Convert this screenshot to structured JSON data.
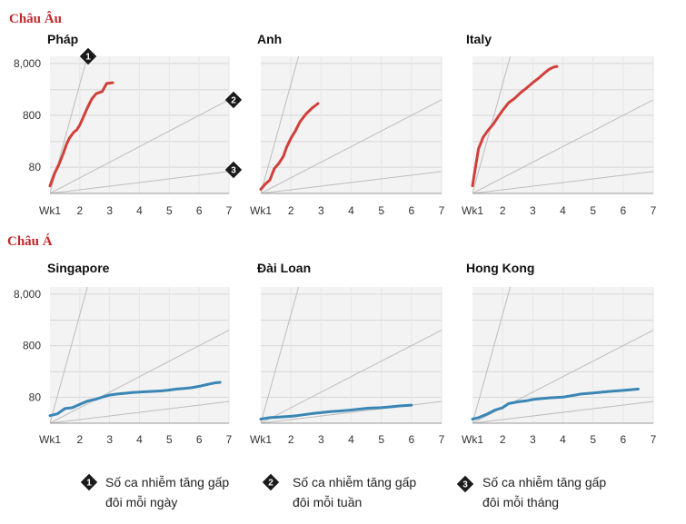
{
  "sections": [
    {
      "title": "Châu Âu"
    },
    {
      "title": "Châu Á"
    }
  ],
  "reference_markers": [
    "1",
    "2",
    "3"
  ],
  "legend": [
    {
      "marker": "1",
      "text_line1": "Số ca nhiễm tăng gấp",
      "text_line2": "đôi mỗi ngày"
    },
    {
      "marker": "2",
      "text_line1": "Số ca nhiễm tăng gấp",
      "text_line2": "đôi mỗi tuần"
    },
    {
      "marker": "3",
      "text_line1": "Số ca nhiễm tăng gấp",
      "text_line2": "đôi mỗi tháng"
    }
  ],
  "colors": {
    "europe_line": "#d0403a",
    "asia_line": "#3a86b5",
    "plot_bg": "#f3f3f3",
    "grid": "#d6d6d6",
    "reference": "#bdbdbd",
    "marker_bg": "#1a1a1a",
    "section_title": "#c2272d"
  },
  "chart_data": [
    {
      "type": "line",
      "title": "Pháp",
      "section": "Châu Âu",
      "color": "#d0403a",
      "x_ticks": [
        "Wk1",
        "2",
        "3",
        "4",
        "5",
        "6",
        "7"
      ],
      "y_ticks": [
        "8,000",
        "800",
        "80"
      ],
      "y_scale": "log",
      "xlim": [
        1,
        7
      ],
      "ylim": [
        25,
        11000
      ],
      "reference_lines": [
        {
          "marker": "1",
          "doubling_days": 1
        },
        {
          "marker": "2",
          "doubling_days": 7
        },
        {
          "marker": "3",
          "doubling_days": 30
        }
      ],
      "series": [
        {
          "x": [
            1.0,
            1.15,
            1.3,
            1.45,
            1.55,
            1.65,
            1.8,
            1.9,
            2.0,
            2.1,
            2.25,
            2.4,
            2.55,
            2.75,
            2.9,
            3.1
          ],
          "y": [
            35,
            60,
            90,
            150,
            220,
            290,
            380,
            420,
            520,
            700,
            1100,
            1650,
            2100,
            2300,
            3300,
            3400
          ]
        }
      ]
    },
    {
      "type": "line",
      "title": "Anh",
      "section": "Châu Âu",
      "color": "#d0403a",
      "x_ticks": [
        "Wk1",
        "2",
        "3",
        "4",
        "5",
        "6",
        "7"
      ],
      "y_ticks": [],
      "y_scale": "log",
      "xlim": [
        1,
        7
      ],
      "ylim": [
        25,
        11000
      ],
      "reference_lines": [
        {
          "doubling_days": 1
        },
        {
          "doubling_days": 7
        },
        {
          "doubling_days": 30
        }
      ],
      "series": [
        {
          "x": [
            1.0,
            1.15,
            1.3,
            1.45,
            1.6,
            1.75,
            1.85,
            2.0,
            2.15,
            2.3,
            2.5,
            2.7,
            2.9
          ],
          "y": [
            30,
            38,
            45,
            75,
            95,
            130,
            190,
            290,
            400,
            600,
            850,
            1100,
            1350
          ]
        }
      ]
    },
    {
      "type": "line",
      "title": "Italy",
      "section": "Châu Âu",
      "color": "#d0403a",
      "x_ticks": [
        "Wk1",
        "2",
        "3",
        "4",
        "5",
        "6",
        "7"
      ],
      "y_ticks": [],
      "y_scale": "log",
      "xlim": [
        1,
        7
      ],
      "ylim": [
        25,
        11000
      ],
      "reference_lines": [
        {
          "doubling_days": 1
        },
        {
          "doubling_days": 7
        },
        {
          "doubling_days": 30
        }
      ],
      "series": [
        {
          "x": [
            1.0,
            1.1,
            1.2,
            1.35,
            1.5,
            1.7,
            1.85,
            2.0,
            2.2,
            2.4,
            2.6,
            2.8,
            3.0,
            3.2,
            3.4,
            3.55,
            3.7,
            3.8
          ],
          "y": [
            35,
            80,
            180,
            300,
            400,
            550,
            750,
            1000,
            1400,
            1700,
            2200,
            2700,
            3400,
            4200,
            5300,
            6200,
            6800,
            7000
          ]
        }
      ]
    },
    {
      "type": "line",
      "title": "Singapore",
      "section": "Châu Á",
      "color": "#3a86b5",
      "x_ticks": [
        "Wk1",
        "2",
        "3",
        "4",
        "5",
        "6",
        "7"
      ],
      "y_ticks": [
        "8,000",
        "800",
        "80"
      ],
      "y_scale": "log",
      "xlim": [
        1,
        7
      ],
      "ylim": [
        25,
        11000
      ],
      "reference_lines": [
        {
          "doubling_days": 1
        },
        {
          "doubling_days": 7
        },
        {
          "doubling_days": 30
        }
      ],
      "series": [
        {
          "x": [
            1.0,
            1.25,
            1.5,
            1.75,
            2.0,
            2.25,
            2.5,
            2.75,
            3.0,
            3.25,
            3.5,
            3.75,
            4.0,
            4.25,
            4.5,
            4.75,
            5.0,
            5.25,
            5.5,
            5.75,
            6.0,
            6.25,
            6.5,
            6.7
          ],
          "y": [
            35,
            38,
            48,
            50,
            58,
            67,
            72,
            80,
            88,
            92,
            95,
            98,
            100,
            102,
            104,
            106,
            110,
            115,
            118,
            122,
            130,
            140,
            150,
            155
          ]
        }
      ]
    },
    {
      "type": "line",
      "title": "Đài Loan",
      "section": "Châu Á",
      "color": "#3a86b5",
      "x_ticks": [
        "Wk1",
        "2",
        "3",
        "4",
        "5",
        "6",
        "7"
      ],
      "y_ticks": [],
      "y_scale": "log",
      "xlim": [
        1,
        7
      ],
      "ylim": [
        25,
        11000
      ],
      "reference_lines": [
        {
          "doubling_days": 1
        },
        {
          "doubling_days": 7
        },
        {
          "doubling_days": 30
        }
      ],
      "series": [
        {
          "x": [
            1.0,
            1.3,
            1.6,
            2.0,
            2.2,
            2.5,
            2.8,
            3.0,
            3.3,
            3.6,
            4.0,
            4.3,
            4.6,
            5.0,
            5.3,
            5.6,
            6.0
          ],
          "y": [
            30,
            32,
            33,
            34,
            35,
            37,
            39,
            40,
            42,
            43,
            45,
            47,
            49,
            50,
            52,
            54,
            56
          ]
        }
      ]
    },
    {
      "type": "line",
      "title": "Hong Kong",
      "section": "Châu Á",
      "color": "#3a86b5",
      "x_ticks": [
        "Wk1",
        "2",
        "3",
        "4",
        "5",
        "6",
        "7"
      ],
      "y_ticks": [],
      "y_scale": "log",
      "xlim": [
        1,
        7
      ],
      "ylim": [
        25,
        11000
      ],
      "reference_lines": [
        {
          "doubling_days": 1
        },
        {
          "doubling_days": 7
        },
        {
          "doubling_days": 30
        }
      ],
      "series": [
        {
          "x": [
            1.0,
            1.2,
            1.5,
            1.75,
            2.0,
            2.2,
            2.5,
            2.8,
            3.0,
            3.3,
            3.6,
            4.0,
            4.3,
            4.6,
            5.0,
            5.3,
            5.6,
            6.0,
            6.3,
            6.5
          ],
          "y": [
            30,
            32,
            38,
            45,
            50,
            60,
            65,
            68,
            72,
            75,
            78,
            80,
            86,
            92,
            96,
            100,
            104,
            108,
            112,
            115
          ]
        }
      ]
    }
  ]
}
